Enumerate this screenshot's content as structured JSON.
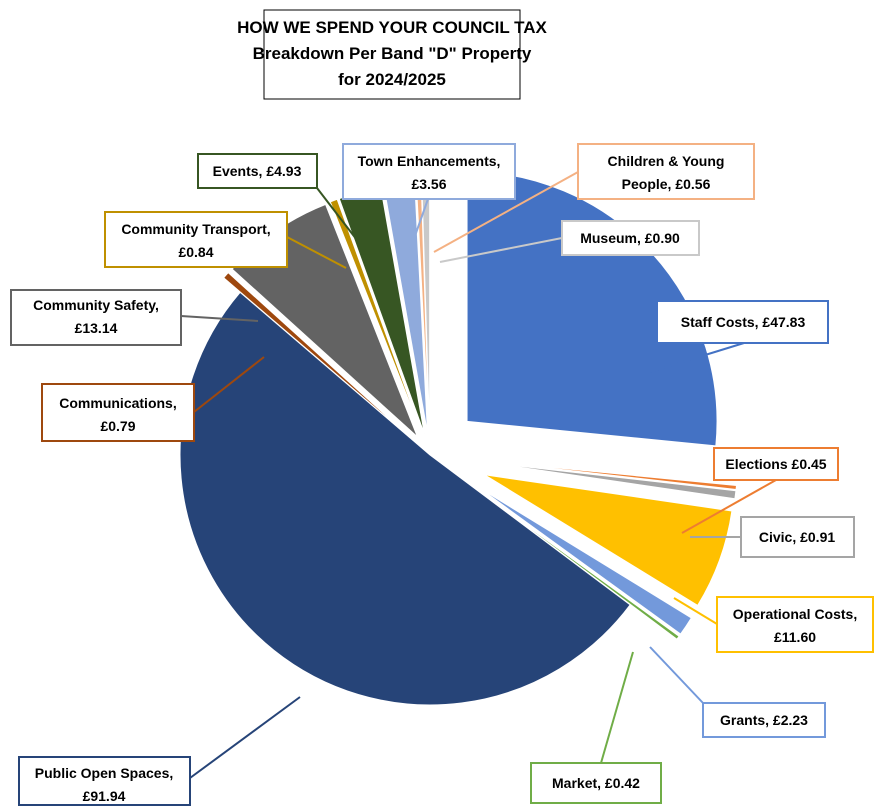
{
  "chart_data": {
    "type": "pie",
    "title": [
      "HOW WE SPEND YOUR COUNCIL TAX",
      "Breakdown Per Band \"D\" Property",
      "for 2024/2025"
    ],
    "start_angle_deg": 0,
    "direction": "clockwise",
    "exploded": true,
    "slices": [
      {
        "name": "Staff Costs",
        "value": 47.83,
        "label": [
          "Staff Costs, £47.83"
        ],
        "color": "#4472C4"
      },
      {
        "name": "Elections",
        "value": 0.45,
        "label": [
          "Elections £0.45"
        ],
        "color": "#ED7D31"
      },
      {
        "name": "Civic",
        "value": 0.91,
        "label": [
          "Civic,  £0.91"
        ],
        "color": "#A5A5A5"
      },
      {
        "name": "Operational Costs",
        "value": 11.6,
        "label": [
          "Operational Costs,",
          "£11.60"
        ],
        "color": "#FFC000"
      },
      {
        "name": "Grants",
        "value": 2.23,
        "label": [
          "Grants,  £2.23"
        ],
        "color": "#7399DB"
      },
      {
        "name": "Market",
        "value": 0.42,
        "label": [
          "Market,  £0.42"
        ],
        "color": "#70AD47"
      },
      {
        "name": "Public Open Spaces",
        "value": 91.94,
        "label": [
          "Public Open Spaces,",
          "£91.94"
        ],
        "color": "#264478"
      },
      {
        "name": "Communications",
        "value": 0.79,
        "label": [
          "Communications,",
          "£0.79"
        ],
        "color": "#9E480E"
      },
      {
        "name": "Community Safety",
        "value": 13.14,
        "label": [
          "Community Safety,",
          "£13.14"
        ],
        "color": "#636363"
      },
      {
        "name": "Community Transport",
        "value": 0.84,
        "label": [
          "Community Transport,",
          "£0.84"
        ],
        "color": "#BF9000"
      },
      {
        "name": "Events",
        "value": 4.93,
        "label": [
          "Events,  £4.93"
        ],
        "color": "#375623"
      },
      {
        "name": "Town Enhancements",
        "value": 3.56,
        "label": [
          "Town Enhancements,",
          "£3.56"
        ],
        "color": "#8FAADC"
      },
      {
        "name": "Children & Young People",
        "value": 0.56,
        "label": [
          "Children & Young",
          "People,  £0.56"
        ],
        "color": "#F4B183"
      },
      {
        "name": "Museum",
        "value": 0.9,
        "label": [
          "Museum,  £0.90"
        ],
        "color": "#C9C9C9"
      }
    ]
  }
}
